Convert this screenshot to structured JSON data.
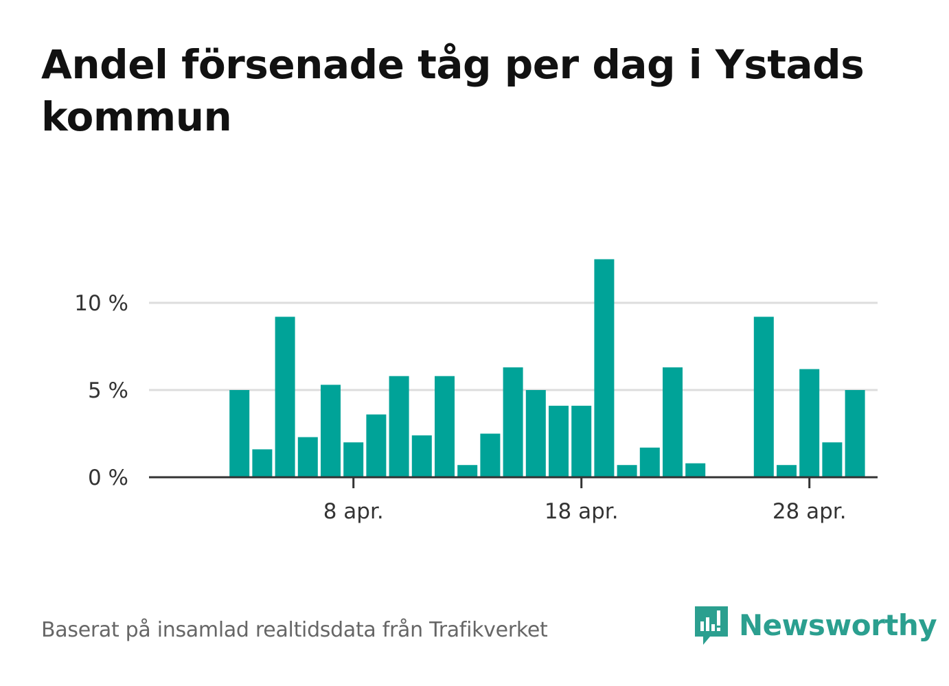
{
  "title": "Andel försenade tåg per dag i Ystads kommun",
  "footer": "Baserat på insamlad realtidsdata från Trafikverket",
  "brand": {
    "name": "Newsworthy",
    "color": "#2b9f8f"
  },
  "colors": {
    "bar": "#00a398",
    "grid": "#dddddd",
    "axis": "#333333",
    "text": "#333333"
  },
  "chart_data": {
    "type": "bar",
    "title": "Andel försenade tåg per dag i Ystads kommun",
    "xlabel": "",
    "ylabel": "",
    "categories": [
      "1 apr.",
      "2 apr.",
      "3 apr.",
      "4 apr.",
      "5 apr.",
      "6 apr.",
      "7 apr.",
      "8 apr.",
      "9 apr.",
      "10 apr.",
      "11 apr.",
      "12 apr.",
      "13 apr.",
      "14 apr.",
      "15 apr.",
      "16 apr.",
      "17 apr.",
      "18 apr.",
      "19 apr.",
      "20 apr.",
      "21 apr.",
      "22 apr.",
      "23 apr.",
      "24 apr.",
      "25 apr.",
      "26 apr.",
      "27 apr.",
      "28 apr.",
      "29 apr.",
      "30 apr."
    ],
    "values": [
      null,
      null,
      5.0,
      1.6,
      9.2,
      2.3,
      5.3,
      2.0,
      3.6,
      5.8,
      2.4,
      5.8,
      0.7,
      2.5,
      6.3,
      5.0,
      4.1,
      4.1,
      12.5,
      0.7,
      1.7,
      6.3,
      0.8,
      null,
      null,
      9.2,
      0.7,
      6.2,
      2.0,
      5.0
    ],
    "ylim": [
      0,
      12.5
    ],
    "yticks": [
      0,
      5,
      10
    ],
    "ytick_labels": [
      "0 %",
      "5 %",
      "10 %"
    ],
    "xticks": [
      "8 apr.",
      "18 apr.",
      "28 apr."
    ],
    "grid": true,
    "legend": "none"
  }
}
